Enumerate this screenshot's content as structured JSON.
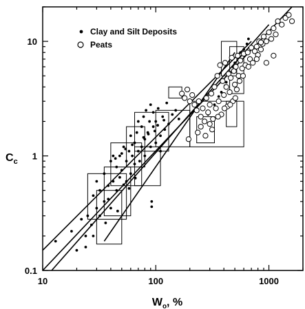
{
  "chart_data": {
    "type": "scatter",
    "xscale": "log",
    "yscale": "log",
    "xlim": [
      10,
      2000
    ],
    "ylim": [
      0.1,
      20
    ],
    "x_ticks": [
      {
        "value": 10,
        "label": "10"
      },
      {
        "value": 100,
        "label": "100"
      },
      {
        "value": 1000,
        "label": "1000"
      }
    ],
    "y_ticks": [
      {
        "value": 0.1,
        "label": "0.1"
      },
      {
        "value": 1,
        "label": "1"
      },
      {
        "value": 10,
        "label": "10"
      }
    ],
    "xlabel": {
      "main": "W",
      "sub": "o",
      "suffix": ", %"
    },
    "ylabel": {
      "main": "C",
      "sub": "c"
    },
    "legend": {
      "placement": "top-left",
      "entries": [
        {
          "label": "Clay and Silt Deposits",
          "marker": "dot"
        },
        {
          "label": "Peats",
          "marker": "open-circle"
        }
      ]
    },
    "series": [
      {
        "name": "Clay and Silt Deposits",
        "marker": "dot",
        "points": [
          [
            13,
            0.18
          ],
          [
            18,
            0.22
          ],
          [
            20,
            0.15
          ],
          [
            22,
            0.28
          ],
          [
            24,
            0.2
          ],
          [
            25,
            0.3
          ],
          [
            27,
            0.25
          ],
          [
            28,
            0.45
          ],
          [
            30,
            0.35
          ],
          [
            30,
            0.6
          ],
          [
            32,
            0.5
          ],
          [
            32,
            0.3
          ],
          [
            35,
            0.7
          ],
          [
            35,
            0.4
          ],
          [
            38,
            0.55
          ],
          [
            40,
            0.9
          ],
          [
            40,
            0.35
          ],
          [
            42,
            0.6
          ],
          [
            42,
            1.0
          ],
          [
            45,
            0.8
          ],
          [
            45,
            0.5
          ],
          [
            48,
            1.0
          ],
          [
            48,
            0.65
          ],
          [
            50,
            0.75
          ],
          [
            52,
            1.2
          ],
          [
            55,
            0.9
          ],
          [
            55,
            0.6
          ],
          [
            58,
            1.1
          ],
          [
            60,
            0.7
          ],
          [
            60,
            1.5
          ],
          [
            62,
            1.0
          ],
          [
            65,
            1.3
          ],
          [
            65,
            0.85
          ],
          [
            68,
            1.6
          ],
          [
            70,
            1.1
          ],
          [
            70,
            2.0
          ],
          [
            72,
            0.9
          ],
          [
            75,
            1.8
          ],
          [
            75,
            1.2
          ],
          [
            78,
            2.2
          ],
          [
            80,
            1.4
          ],
          [
            80,
            1.0
          ],
          [
            82,
            2.5
          ],
          [
            85,
            1.6
          ],
          [
            88,
            2.0
          ],
          [
            90,
            1.2
          ],
          [
            90,
            2.8
          ],
          [
            92,
            0.4
          ],
          [
            95,
            1.8
          ],
          [
            95,
            2.4
          ],
          [
            100,
            1.3
          ],
          [
            100,
            2.0
          ],
          [
            105,
            2.6
          ],
          [
            110,
            1.5
          ],
          [
            110,
            1.1
          ],
          [
            115,
            2.2
          ],
          [
            120,
            1.7
          ],
          [
            125,
            2.9
          ],
          [
            130,
            1.9
          ],
          [
            140,
            2.3
          ],
          [
            150,
            2.5
          ],
          [
            160,
            2.1
          ],
          [
            38,
            0.42
          ],
          [
            46,
            0.33
          ],
          [
            52,
            0.56
          ],
          [
            58,
            0.52
          ],
          [
            66,
            0.64
          ],
          [
            92,
            0.36
          ],
          [
            28,
            0.2
          ],
          [
            24,
            0.16
          ],
          [
            36,
            0.26
          ],
          [
            44,
            0.95
          ],
          [
            50,
            1.05
          ],
          [
            54,
            1.15
          ],
          [
            62,
            1.25
          ],
          [
            78,
            1.45
          ],
          [
            86,
            1.55
          ],
          [
            98,
            1.65
          ],
          [
            104,
            1.85
          ],
          [
            118,
            2.05
          ],
          [
            290,
            2.3
          ],
          [
            330,
            2.8
          ],
          [
            360,
            3.3
          ],
          [
            380,
            3.6
          ],
          [
            420,
            4.4
          ],
          [
            450,
            5.0
          ],
          [
            480,
            6.0
          ],
          [
            500,
            6.5
          ],
          [
            520,
            7.5
          ],
          [
            560,
            8.0
          ],
          [
            600,
            8.5
          ],
          [
            640,
            9.5
          ],
          [
            660,
            10.5
          ],
          [
            540,
            7.0
          ],
          [
            470,
            5.4
          ],
          [
            410,
            4.1
          ]
        ]
      },
      {
        "name": "Peats",
        "marker": "open-circle",
        "points": [
          [
            170,
            3.5
          ],
          [
            180,
            3.2
          ],
          [
            190,
            3.8
          ],
          [
            200,
            3.0
          ],
          [
            210,
            3.4
          ],
          [
            220,
            2.8
          ],
          [
            230,
            2.5
          ],
          [
            240,
            3.0
          ],
          [
            250,
            2.2
          ],
          [
            250,
            1.8
          ],
          [
            260,
            2.6
          ],
          [
            270,
            2.0
          ],
          [
            280,
            3.2
          ],
          [
            290,
            2.4
          ],
          [
            300,
            1.9
          ],
          [
            300,
            2.8
          ],
          [
            310,
            3.5
          ],
          [
            320,
            2.1
          ],
          [
            330,
            4.0
          ],
          [
            340,
            2.6
          ],
          [
            350,
            5.0
          ],
          [
            360,
            3.0
          ],
          [
            370,
            6.2
          ],
          [
            380,
            2.3
          ],
          [
            390,
            4.5
          ],
          [
            400,
            3.4
          ],
          [
            410,
            6.5
          ],
          [
            420,
            4.0
          ],
          [
            430,
            2.7
          ],
          [
            440,
            5.2
          ],
          [
            450,
            3.6
          ],
          [
            460,
            4.8
          ],
          [
            470,
            7.2
          ],
          [
            480,
            3.0
          ],
          [
            490,
            5.5
          ],
          [
            500,
            4.2
          ],
          [
            510,
            6.0
          ],
          [
            520,
            3.8
          ],
          [
            530,
            7.5
          ],
          [
            540,
            5.0
          ],
          [
            550,
            4.5
          ],
          [
            560,
            6.8
          ],
          [
            580,
            5.8
          ],
          [
            600,
            7.8
          ],
          [
            620,
            6.2
          ],
          [
            650,
            8.0
          ],
          [
            680,
            7.0
          ],
          [
            700,
            8.8
          ],
          [
            720,
            6.5
          ],
          [
            750,
            8.2
          ],
          [
            780,
            9.0
          ],
          [
            800,
            7.6
          ],
          [
            820,
            10.0
          ],
          [
            850,
            8.5
          ],
          [
            880,
            9.5
          ],
          [
            900,
            11.0
          ],
          [
            950,
            10.0
          ],
          [
            1000,
            12.0
          ],
          [
            1050,
            10.5
          ],
          [
            1100,
            13.0
          ],
          [
            1150,
            11.5
          ],
          [
            1200,
            15.0
          ],
          [
            1300,
            14.0
          ],
          [
            1400,
            16.0
          ],
          [
            1500,
            17.0
          ],
          [
            1600,
            15.0
          ],
          [
            1100,
            7.5
          ],
          [
            950,
            6.5
          ],
          [
            850,
            9.8
          ],
          [
            780,
            7.0
          ],
          [
            660,
            6.0
          ],
          [
            590,
            5.0
          ],
          [
            505,
            3.2
          ],
          [
            455,
            2.8
          ],
          [
            405,
            2.6
          ],
          [
            355,
            2.2
          ],
          [
            315,
            1.7
          ],
          [
            275,
            1.5
          ],
          [
            235,
            1.6
          ],
          [
            195,
            1.4
          ]
        ]
      }
    ],
    "regression_lines": [
      {
        "from": [
          10,
          0.15
        ],
        "to": [
          700,
          10
        ]
      },
      {
        "from": [
          12,
          0.1
        ],
        "to": [
          1000,
          14
        ]
      },
      {
        "from": [
          10,
          0.1
        ],
        "to": [
          1600,
          20
        ]
      },
      {
        "from": [
          35,
          0.18
        ],
        "to": [
          500,
          8
        ]
      }
    ],
    "range_boxes": [
      {
        "x": [
          25,
          55
        ],
        "y": [
          0.28,
          0.7
        ]
      },
      {
        "x": [
          30,
          50
        ],
        "y": [
          0.17,
          0.5
        ]
      },
      {
        "x": [
          35,
          60
        ],
        "y": [
          0.3,
          0.8
        ]
      },
      {
        "x": [
          40,
          75
        ],
        "y": [
          0.55,
          1.3
        ]
      },
      {
        "x": [
          55,
          80
        ],
        "y": [
          0.8,
          1.8
        ]
      },
      {
        "x": [
          65,
          110
        ],
        "y": [
          0.55,
          1.2
        ]
      },
      {
        "x": [
          65,
          130
        ],
        "y": [
          1.1,
          2.4
        ]
      },
      {
        "x": [
          100,
          200
        ],
        "y": [
          1.2,
          2.5
        ]
      },
      {
        "x": [
          130,
          170
        ],
        "y": [
          3.2,
          4.0
        ]
      },
      {
        "x": [
          200,
          600
        ],
        "y": [
          1.2,
          3.0
        ]
      },
      {
        "x": [
          230,
          330
        ],
        "y": [
          1.3,
          2.2
        ]
      },
      {
        "x": [
          420,
          520
        ],
        "y": [
          1.8,
          3.0
        ]
      },
      {
        "x": [
          380,
          520
        ],
        "y": [
          5.0,
          10.0
        ]
      },
      {
        "x": [
          450,
          600
        ],
        "y": [
          3.5,
          9.0
        ]
      }
    ]
  }
}
